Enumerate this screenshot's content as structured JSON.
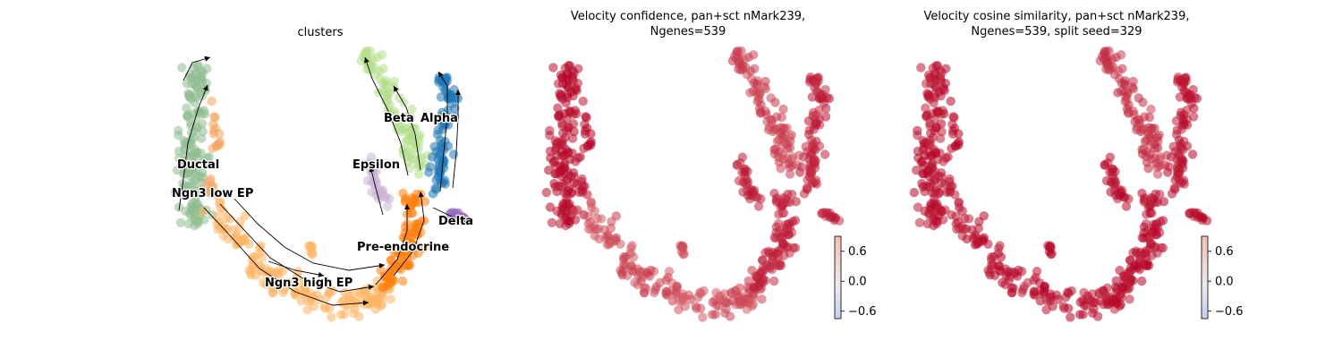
{
  "chart_data": [
    {
      "type": "scatter",
      "title": "clusters",
      "overlay": "velocity-streamlines",
      "legend": "on-data",
      "clusters": [
        {
          "name": "Ductal",
          "color": "#8fbc8f"
        },
        {
          "name": "Ngn3 low EP",
          "color": "#f4a460"
        },
        {
          "name": "Ngn3 high EP",
          "color": "#fdb462"
        },
        {
          "name": "Pre-endocrine",
          "color": "#ff7f0e"
        },
        {
          "name": "Beta",
          "color": "#b2df8a"
        },
        {
          "name": "Alpha",
          "color": "#1f77b4"
        },
        {
          "name": "Delta",
          "color": "#9467bd"
        },
        {
          "name": "Epsilon",
          "color": "#cab2d6"
        }
      ]
    },
    {
      "type": "scatter",
      "title_line1": "Velocity confidence, pan+sct nMark239,",
      "title_line2": "Ngenes=539",
      "colormap": "coolwarm",
      "colorbar": {
        "ticks": [
          "0.6",
          "0.0",
          "−0.6"
        ],
        "min": -0.75,
        "max": 0.9
      }
    },
    {
      "type": "scatter",
      "title_line1": "Velocity cosine similarity, pan+sct nMark239,",
      "title_line2": "Ngenes=539, split seed=329",
      "colormap": "coolwarm",
      "colorbar": {
        "ticks": [
          "0.6",
          "0.0",
          "−0.6"
        ],
        "min": -0.75,
        "max": 0.9
      }
    }
  ],
  "colors": {
    "high": "#b40426",
    "mid": "#dddcdc",
    "low": "#3b4cc0"
  }
}
